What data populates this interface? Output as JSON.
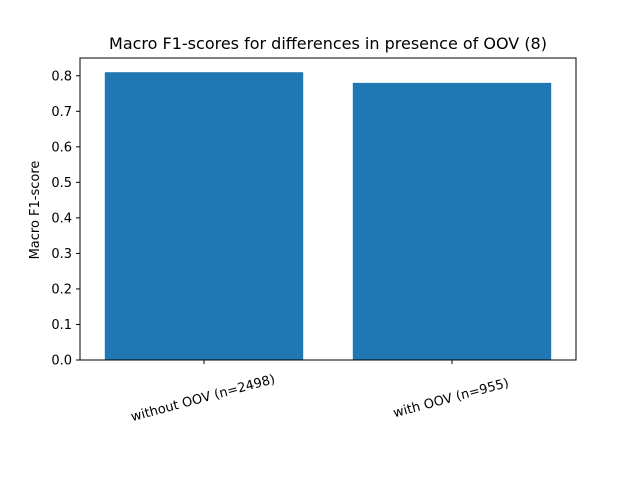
{
  "chart_data": {
    "type": "bar",
    "title": "Macro F1-scores for differences in presence of OOV (8)",
    "xlabel": "",
    "ylabel": "Macro F1-score",
    "categories": [
      "without OOV (n=2498)",
      "with OOV (n=955)"
    ],
    "values": [
      0.81,
      0.78
    ],
    "ylim": [
      0,
      0.85
    ],
    "yticks": [
      0.0,
      0.1,
      0.2,
      0.3,
      0.4,
      0.5,
      0.6,
      0.7,
      0.8
    ],
    "ytick_labels": [
      "0.0",
      "0.1",
      "0.2",
      "0.3",
      "0.4",
      "0.5",
      "0.6",
      "0.7",
      "0.8"
    ],
    "bar_color": "#1f77b4",
    "grid": false,
    "xtick_rotation_deg": -15
  }
}
